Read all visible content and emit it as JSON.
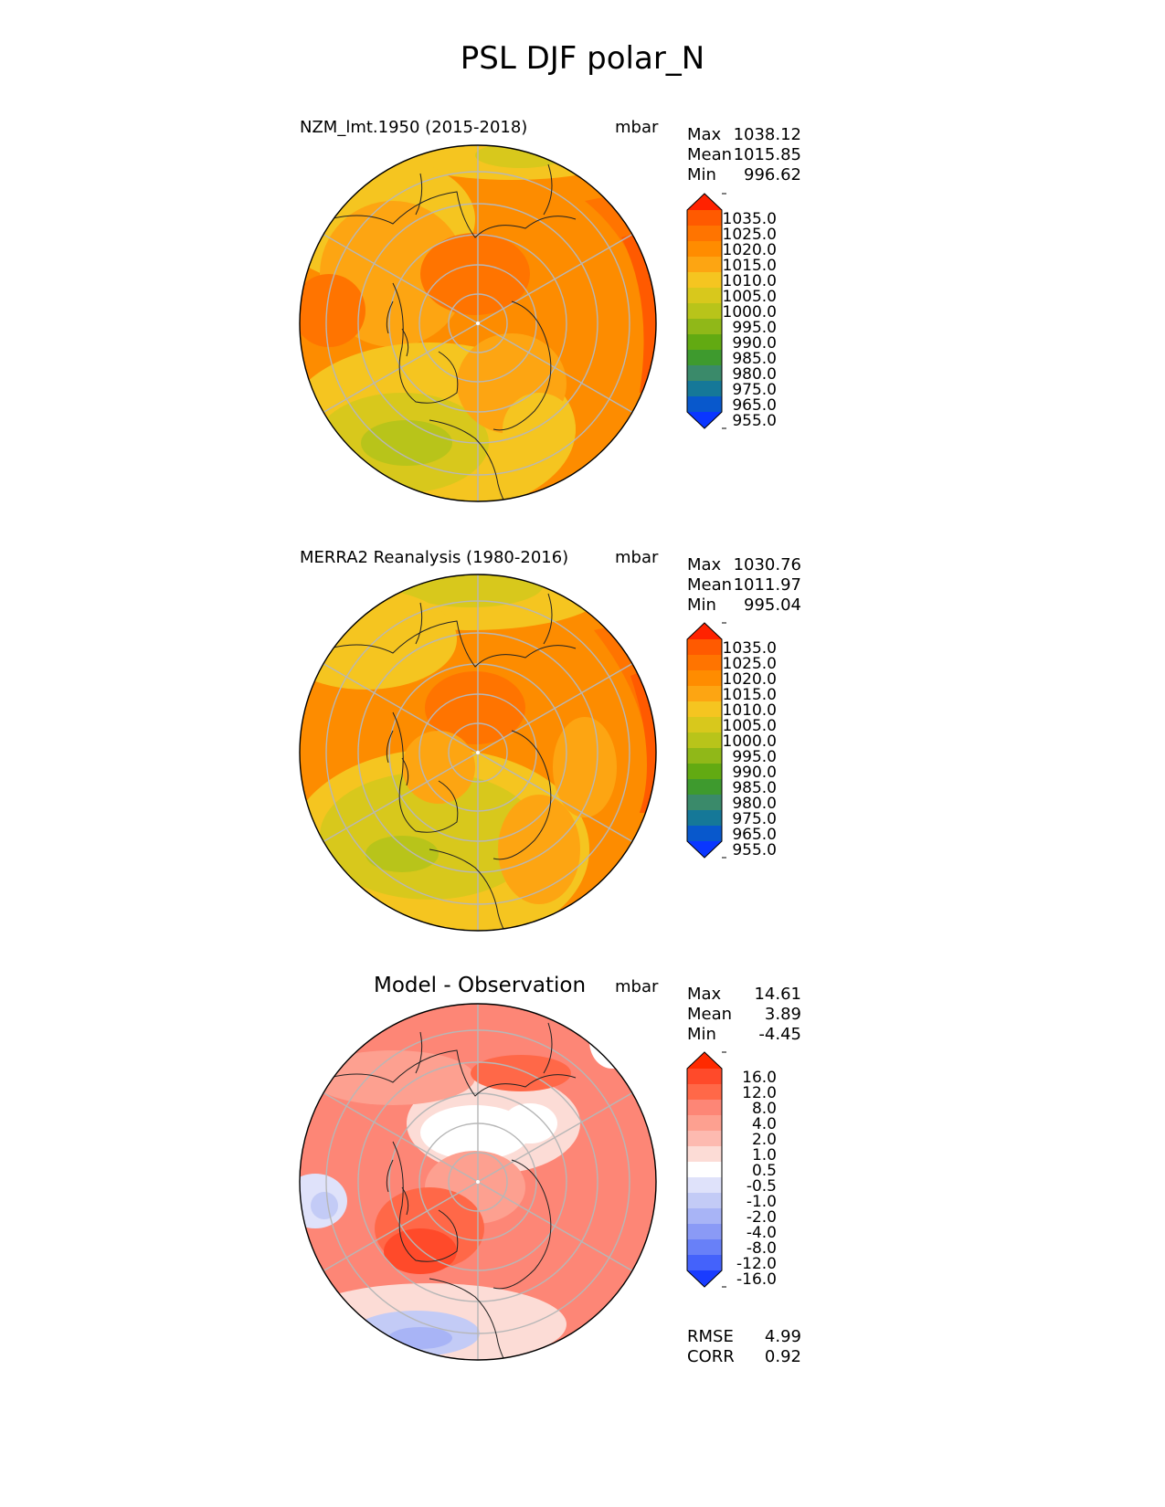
{
  "figure_title": "PSL DJF polar_N",
  "panels": [
    {
      "title": "NZM_lmt.1950 (2015-2018)",
      "units": "mbar",
      "stats": {
        "max_label": "Max",
        "max_value": "1038.12",
        "mean_label": "Mean",
        "mean_value": "1015.85",
        "min_label": "Min",
        "min_value": "996.62"
      }
    },
    {
      "title": "MERRA2 Reanalysis (1980-2016)",
      "units": "mbar",
      "stats": {
        "max_label": "Max",
        "max_value": "1030.76",
        "mean_label": "Mean",
        "mean_value": "1011.97",
        "min_label": "Min",
        "min_value": "995.04"
      }
    },
    {
      "title": "Model - Observation",
      "units": "mbar",
      "stats": {
        "max_label": "Max",
        "max_value": "14.61",
        "mean_label": "Mean",
        "mean_value": "3.89",
        "min_label": "Min",
        "min_value": "-4.45"
      },
      "metrics": {
        "rmse_label": "RMSE",
        "rmse_value": "4.99",
        "corr_label": "CORR",
        "corr_value": "0.92"
      }
    }
  ],
  "chart_data": {
    "type": "heatmap",
    "projection": "north polar stereographic",
    "variable": "PSL",
    "season": "DJF",
    "region": "polar_N",
    "colorbars": {
      "absolute": {
        "labels": [
          "1035.0",
          "1025.0",
          "1020.0",
          "1015.0",
          "1010.0",
          "1005.0",
          "1000.0",
          "995.0",
          "990.0",
          "985.0",
          "980.0",
          "975.0",
          "965.0",
          "955.0"
        ],
        "colors": [
          "#ff2200",
          "#ff5a00",
          "#ff7400",
          "#ff8c00",
          "#fda512",
          "#f5c520",
          "#d8c81c",
          "#b8c41a",
          "#90b818",
          "#62aa12",
          "#3e9a2e",
          "#3a8a6a",
          "#157898",
          "#0858cc",
          "#0a36ff"
        ]
      },
      "difference": {
        "labels": [
          "16.0",
          "12.0",
          "8.0",
          "4.0",
          "2.0",
          "1.0",
          "0.5",
          "-0.5",
          "-1.0",
          "-2.0",
          "-4.0",
          "-8.0",
          "-12.0",
          "-16.0"
        ],
        "colors": [
          "#ff2a00",
          "#ff4a2a",
          "#ff6848",
          "#fd8676",
          "#fda090",
          "#fdbab0",
          "#fcdcd6",
          "#ffffff",
          "#dfe2fa",
          "#c3cbf6",
          "#a8b4f6",
          "#8a9af6",
          "#6880f8",
          "#4462fb",
          "#1a3cff"
        ]
      }
    }
  }
}
